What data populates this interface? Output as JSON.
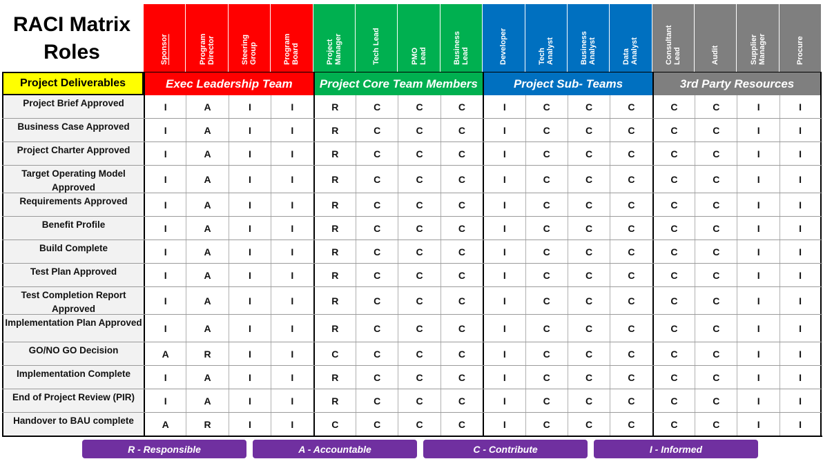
{
  "title": [
    "RACI Matrix",
    "Roles"
  ],
  "deliverables_header": "Project Deliverables",
  "groups": [
    {
      "name": "Exec Leadership Team",
      "color": "#ff0000",
      "roles": [
        "Sponsor",
        "Program\nDirector",
        "Steering\nGroup",
        "Program\nBoard"
      ]
    },
    {
      "name": "Project  Core Team Members",
      "color": "#00b050",
      "roles": [
        "Project\nManager",
        "Tech Lead",
        "PMO\nLead",
        "Business\nLead"
      ]
    },
    {
      "name": "Project Sub- Teams",
      "color": "#0070c0",
      "roles": [
        "Developer",
        "Tech\nAnalyst",
        "Business\nAnalyst",
        "Data\nAnalyst"
      ]
    },
    {
      "name": "3rd Party Resources",
      "color": "#7f7f7f",
      "roles": [
        "Consultant\nLead",
        "Audit",
        "Supplier\nManager",
        "Procure"
      ]
    }
  ],
  "rows": [
    {
      "deliverable": "Project Brief Approved",
      "values": [
        "I",
        "A",
        "I",
        "I",
        "R",
        "C",
        "C",
        "C",
        "I",
        "C",
        "C",
        "C",
        "C",
        "C",
        "I",
        "I"
      ]
    },
    {
      "deliverable": "Business Case Approved",
      "values": [
        "I",
        "A",
        "I",
        "I",
        "R",
        "C",
        "C",
        "C",
        "I",
        "C",
        "C",
        "C",
        "C",
        "C",
        "I",
        "I"
      ]
    },
    {
      "deliverable": "Project Charter Approved",
      "values": [
        "I",
        "A",
        "I",
        "I",
        "R",
        "C",
        "C",
        "C",
        "I",
        "C",
        "C",
        "C",
        "C",
        "C",
        "I",
        "I"
      ]
    },
    {
      "deliverable": "Target Operating Model Approved",
      "values": [
        "I",
        "A",
        "I",
        "I",
        "R",
        "C",
        "C",
        "C",
        "I",
        "C",
        "C",
        "C",
        "C",
        "C",
        "I",
        "I"
      ]
    },
    {
      "deliverable": "Requirements Approved",
      "values": [
        "I",
        "A",
        "I",
        "I",
        "R",
        "C",
        "C",
        "C",
        "I",
        "C",
        "C",
        "C",
        "C",
        "C",
        "I",
        "I"
      ]
    },
    {
      "deliverable": "Benefit Profile",
      "values": [
        "I",
        "A",
        "I",
        "I",
        "R",
        "C",
        "C",
        "C",
        "I",
        "C",
        "C",
        "C",
        "C",
        "C",
        "I",
        "I"
      ]
    },
    {
      "deliverable": "Build Complete",
      "values": [
        "I",
        "A",
        "I",
        "I",
        "R",
        "C",
        "C",
        "C",
        "I",
        "C",
        "C",
        "C",
        "C",
        "C",
        "I",
        "I"
      ]
    },
    {
      "deliverable": "Test Plan Approved",
      "values": [
        "I",
        "A",
        "I",
        "I",
        "R",
        "C",
        "C",
        "C",
        "I",
        "C",
        "C",
        "C",
        "C",
        "C",
        "I",
        "I"
      ]
    },
    {
      "deliverable": "Test Completion Report Approved",
      "values": [
        "I",
        "A",
        "I",
        "I",
        "R",
        "C",
        "C",
        "C",
        "I",
        "C",
        "C",
        "C",
        "C",
        "C",
        "I",
        "I"
      ]
    },
    {
      "deliverable": "Implementation Plan Approved",
      "values": [
        "I",
        "A",
        "I",
        "I",
        "R",
        "C",
        "C",
        "C",
        "I",
        "C",
        "C",
        "C",
        "C",
        "C",
        "I",
        "I"
      ]
    },
    {
      "deliverable": "GO/NO GO Decision",
      "values": [
        "A",
        "R",
        "I",
        "I",
        "C",
        "C",
        "C",
        "C",
        "I",
        "C",
        "C",
        "C",
        "C",
        "C",
        "I",
        "I"
      ]
    },
    {
      "deliverable": "Implementation Complete",
      "values": [
        "I",
        "A",
        "I",
        "I",
        "R",
        "C",
        "C",
        "C",
        "I",
        "C",
        "C",
        "C",
        "C",
        "C",
        "I",
        "I"
      ]
    },
    {
      "deliverable": "End of Project Review (PIR)",
      "values": [
        "I",
        "A",
        "I",
        "I",
        "R",
        "C",
        "C",
        "C",
        "I",
        "C",
        "C",
        "C",
        "C",
        "C",
        "I",
        "I"
      ]
    },
    {
      "deliverable": "Handover to BAU complete",
      "values": [
        "A",
        "R",
        "I",
        "I",
        "C",
        "C",
        "C",
        "C",
        "I",
        "C",
        "C",
        "C",
        "C",
        "C",
        "I",
        "I"
      ]
    }
  ],
  "legend": [
    "R - Responsible",
    "A - Accountable",
    "C - Contribute",
    "I - Informed"
  ],
  "legend_color": "#7030a0",
  "deliverables_header_color": "#ffff00"
}
